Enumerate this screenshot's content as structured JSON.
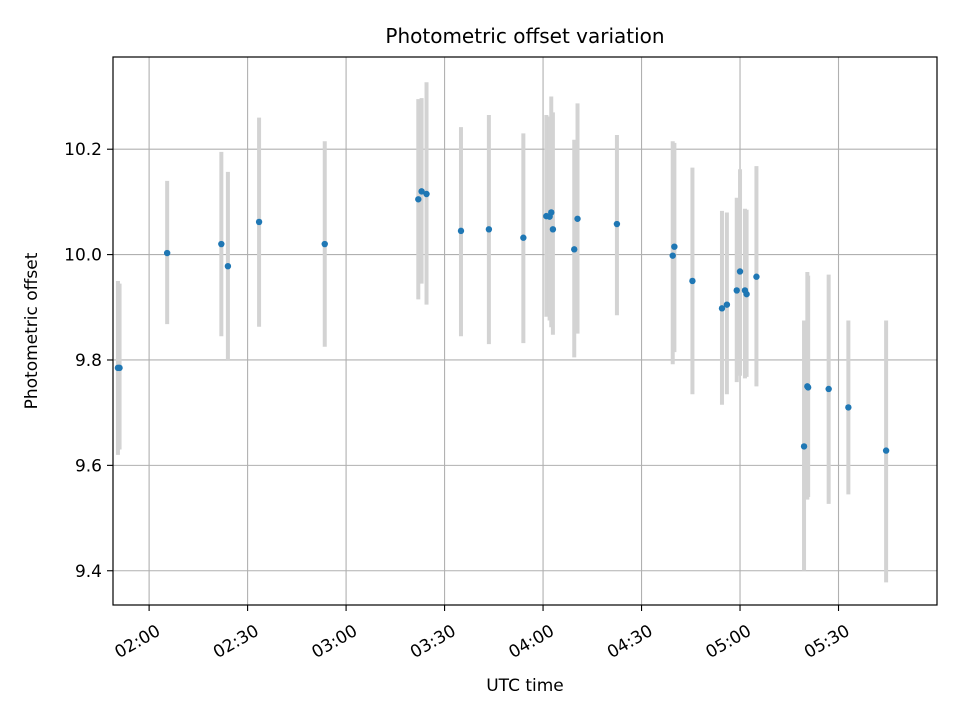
{
  "chart_data": {
    "type": "scatter",
    "title": "Photometric offset variation",
    "xlabel": "UTC time",
    "ylabel": "Photometric offset",
    "grid": true,
    "x_axis": {
      "kind": "time",
      "range": [
        "01:49:00",
        "06:00:00"
      ],
      "ticks": [
        "02:00",
        "02:30",
        "03:00",
        "03:30",
        "04:00",
        "04:30",
        "05:00",
        "05:30"
      ]
    },
    "y_axis": {
      "range": [
        9.335,
        10.375
      ],
      "ticks": [
        "9.4",
        "9.6",
        "9.8",
        "10.0",
        "10.2"
      ]
    },
    "colors": {
      "point": "#1f77b4",
      "errorbar": "#d3d3d3",
      "grid": "#b0b0b0"
    },
    "series": [
      {
        "points": [
          {
            "x": "01:50:30",
            "y": 9.785,
            "low": 9.62,
            "high": 9.95
          },
          {
            "x": "01:51:00",
            "y": 9.785,
            "low": 9.63,
            "high": 9.945
          },
          {
            "x": "02:05:30",
            "y": 10.003,
            "low": 9.868,
            "high": 10.14
          },
          {
            "x": "02:22:00",
            "y": 10.02,
            "low": 9.845,
            "high": 10.195
          },
          {
            "x": "02:24:00",
            "y": 9.978,
            "low": 9.8,
            "high": 10.157
          },
          {
            "x": "02:33:30",
            "y": 10.062,
            "low": 9.863,
            "high": 10.26
          },
          {
            "x": "02:53:30",
            "y": 10.02,
            "low": 9.825,
            "high": 10.215
          },
          {
            "x": "03:22:00",
            "y": 10.105,
            "low": 9.915,
            "high": 10.295
          },
          {
            "x": "03:23:00",
            "y": 10.12,
            "low": 9.945,
            "high": 10.297
          },
          {
            "x": "03:24:30",
            "y": 10.115,
            "low": 9.905,
            "high": 10.327
          },
          {
            "x": "03:35:00",
            "y": 10.045,
            "low": 9.845,
            "high": 10.242
          },
          {
            "x": "03:43:30",
            "y": 10.048,
            "low": 9.83,
            "high": 10.265
          },
          {
            "x": "03:54:00",
            "y": 10.032,
            "low": 9.832,
            "high": 10.23
          },
          {
            "x": "04:01:00",
            "y": 10.073,
            "low": 9.882,
            "high": 10.265
          },
          {
            "x": "04:02:00",
            "y": 10.072,
            "low": 9.875,
            "high": 10.262
          },
          {
            "x": "04:02:30",
            "y": 10.08,
            "low": 9.862,
            "high": 10.3
          },
          {
            "x": "04:03:00",
            "y": 10.048,
            "low": 9.848,
            "high": 10.27
          },
          {
            "x": "04:09:30",
            "y": 10.01,
            "low": 9.805,
            "high": 10.218
          },
          {
            "x": "04:10:30",
            "y": 10.068,
            "low": 9.85,
            "high": 10.287
          },
          {
            "x": "04:22:30",
            "y": 10.058,
            "low": 9.885,
            "high": 10.227
          },
          {
            "x": "04:39:30",
            "y": 9.998,
            "low": 9.792,
            "high": 10.215
          },
          {
            "x": "04:40:00",
            "y": 10.015,
            "low": 9.815,
            "high": 10.212
          },
          {
            "x": "04:45:30",
            "y": 9.95,
            "low": 9.735,
            "high": 10.165
          },
          {
            "x": "04:54:30",
            "y": 9.898,
            "low": 9.715,
            "high": 10.083
          },
          {
            "x": "04:56:00",
            "y": 9.905,
            "low": 9.735,
            "high": 10.08
          },
          {
            "x": "04:59:00",
            "y": 9.932,
            "low": 9.758,
            "high": 10.108
          },
          {
            "x": "05:00:00",
            "y": 9.968,
            "low": 9.77,
            "high": 10.162
          },
          {
            "x": "05:01:30",
            "y": 9.932,
            "low": 9.765,
            "high": 10.087
          },
          {
            "x": "05:02:00",
            "y": 9.925,
            "low": 9.768,
            "high": 10.085
          },
          {
            "x": "05:05:00",
            "y": 9.958,
            "low": 9.75,
            "high": 10.168
          },
          {
            "x": "05:19:30",
            "y": 9.636,
            "low": 9.4,
            "high": 9.875
          },
          {
            "x": "05:20:30",
            "y": 9.75,
            "low": 9.535,
            "high": 9.967
          },
          {
            "x": "05:20:45",
            "y": 9.748,
            "low": 9.54,
            "high": 9.96
          },
          {
            "x": "05:27:00",
            "y": 9.745,
            "low": 9.527,
            "high": 9.962
          },
          {
            "x": "05:33:00",
            "y": 9.71,
            "low": 9.545,
            "high": 9.875
          },
          {
            "x": "05:44:30",
            "y": 9.628,
            "low": 9.378,
            "high": 9.875
          }
        ]
      }
    ]
  }
}
